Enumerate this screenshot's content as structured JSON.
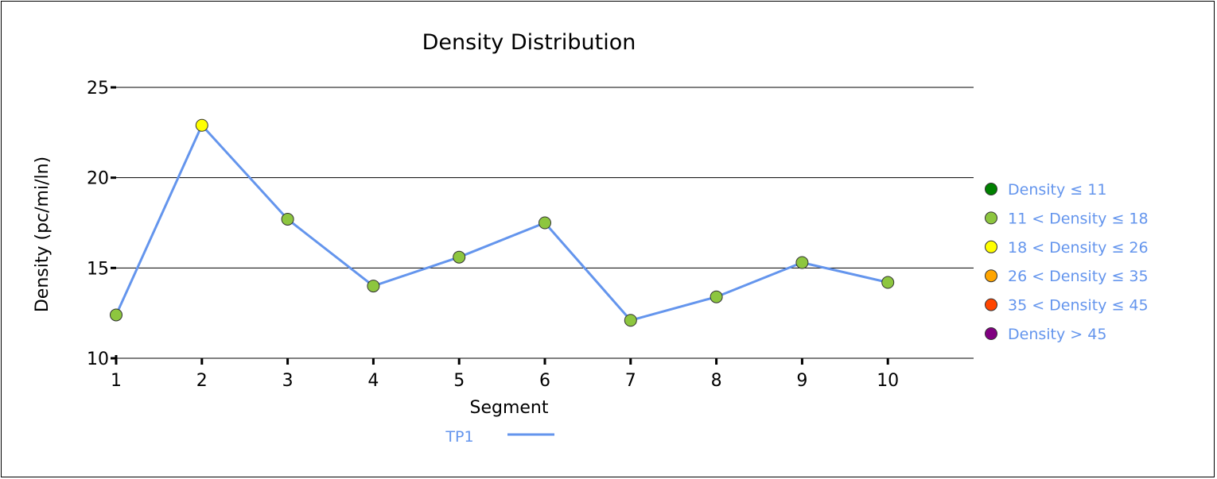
{
  "chart_data": {
    "type": "line",
    "title": "Density Distribution",
    "xlabel": "Segment",
    "ylabel": "Density (pc/mi/ln)",
    "categories": [
      "1",
      "2",
      "3",
      "4",
      "5",
      "6",
      "7",
      "8",
      "9",
      "10"
    ],
    "series": [
      {
        "name": "TP1",
        "color": "#6495ED",
        "values": [
          12.4,
          22.9,
          17.7,
          14.0,
          15.6,
          17.5,
          12.1,
          13.4,
          15.3,
          14.2
        ]
      }
    ],
    "ylim": [
      10,
      25
    ],
    "y_ticks": [
      "10",
      "15",
      "20",
      "25"
    ],
    "grid": true,
    "legend_position": "right",
    "density_legend": [
      {
        "label": "Density ≤ 11",
        "color": "#008000"
      },
      {
        "label": "11 < Density ≤ 18",
        "color": "#8DC63F"
      },
      {
        "label": "18 < Density ≤ 26",
        "color": "#FFFF00"
      },
      {
        "label": "26 < Density ≤ 35",
        "color": "#FFA500"
      },
      {
        "label": "35 < Density ≤ 45",
        "color": "#FF4500"
      },
      {
        "label": "Density > 45",
        "color": "#800080"
      }
    ],
    "legend_text_color": "#6495ED",
    "thresholds": [
      11,
      18,
      26,
      35,
      45
    ]
  }
}
